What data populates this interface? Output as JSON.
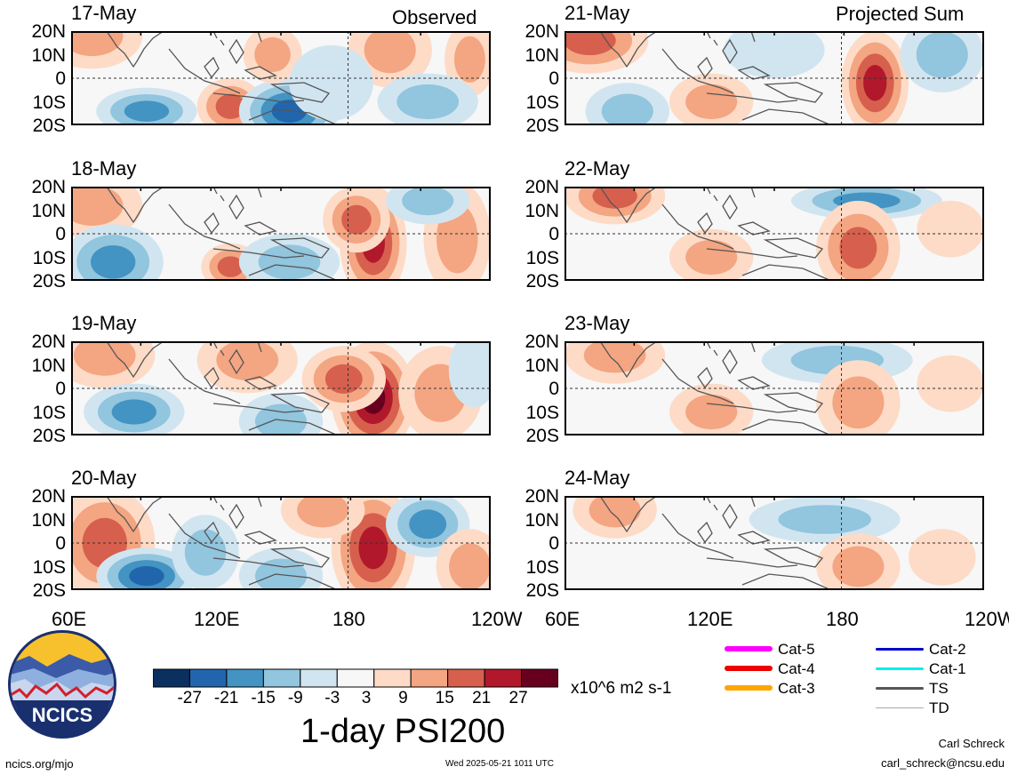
{
  "chart_data": {
    "type": "heatmap",
    "title": "1-day PSI200",
    "units": "x10^6 m2 s-1",
    "left_column_label": "Observed",
    "right_column_label": "Projected Sum",
    "y_ticks": [
      "20N",
      "10N",
      "0",
      "10S",
      "20S"
    ],
    "x_ticks": [
      "60E",
      "120E",
      "180",
      "120W"
    ],
    "colorbar": {
      "ticks": [
        "-27",
        "-21",
        "-15",
        "-9",
        "-3",
        "3",
        "9",
        "15",
        "21",
        "27"
      ],
      "colors": [
        "#0b2f5e",
        "#2166ac",
        "#4393c3",
        "#92c5de",
        "#d1e5f0",
        "#f7f7f7",
        "#fddbc7",
        "#f4a582",
        "#d6604d",
        "#b2182b",
        "#67001f"
      ]
    },
    "panels": [
      {
        "date": "17-May",
        "column": "observed",
        "blobs": [
          [
            0.05,
            0.05,
            0.12,
            0.35,
            9
          ],
          [
            0.18,
            0.85,
            0.12,
            0.25,
            -15
          ],
          [
            0.38,
            0.8,
            0.08,
            0.3,
            15
          ],
          [
            0.52,
            0.85,
            0.12,
            0.35,
            -21
          ],
          [
            0.48,
            0.25,
            0.07,
            0.3,
            9
          ],
          [
            0.76,
            0.2,
            0.1,
            0.4,
            9
          ],
          [
            0.95,
            0.3,
            0.06,
            0.4,
            9
          ],
          [
            0.85,
            0.75,
            0.12,
            0.3,
            -9
          ],
          [
            0.62,
            0.55,
            0.1,
            0.4,
            -3
          ]
        ]
      },
      {
        "date": "18-May",
        "column": "observed",
        "blobs": [
          [
            0.05,
            0.2,
            0.12,
            0.35,
            9
          ],
          [
            0.1,
            0.8,
            0.12,
            0.4,
            -15
          ],
          [
            0.38,
            0.85,
            0.07,
            0.25,
            15
          ],
          [
            0.52,
            0.8,
            0.12,
            0.3,
            -9
          ],
          [
            0.72,
            0.6,
            0.08,
            0.6,
            21
          ],
          [
            0.68,
            0.35,
            0.08,
            0.35,
            15
          ],
          [
            0.92,
            0.55,
            0.08,
            0.6,
            9
          ],
          [
            0.85,
            0.15,
            0.1,
            0.25,
            -9
          ]
        ]
      },
      {
        "date": "19-May",
        "column": "observed",
        "blobs": [
          [
            0.08,
            0.15,
            0.12,
            0.35,
            9
          ],
          [
            0.15,
            0.75,
            0.12,
            0.3,
            -15
          ],
          [
            0.42,
            0.2,
            0.12,
            0.35,
            9
          ],
          [
            0.72,
            0.6,
            0.1,
            0.6,
            27
          ],
          [
            0.65,
            0.4,
            0.1,
            0.35,
            15
          ],
          [
            0.88,
            0.55,
            0.1,
            0.5,
            9
          ],
          [
            0.5,
            0.85,
            0.1,
            0.3,
            -9
          ],
          [
            0.96,
            0.3,
            0.06,
            0.4,
            -3
          ]
        ]
      },
      {
        "date": "20-May",
        "column": "observed",
        "blobs": [
          [
            0.08,
            0.5,
            0.12,
            0.6,
            15
          ],
          [
            0.18,
            0.85,
            0.12,
            0.3,
            -21
          ],
          [
            0.32,
            0.6,
            0.08,
            0.4,
            -9
          ],
          [
            0.72,
            0.55,
            0.1,
            0.65,
            21
          ],
          [
            0.6,
            0.15,
            0.1,
            0.3,
            9
          ],
          [
            0.85,
            0.3,
            0.1,
            0.35,
            -15
          ],
          [
            0.95,
            0.75,
            0.08,
            0.4,
            9
          ],
          [
            0.5,
            0.85,
            0.1,
            0.3,
            -9
          ]
        ]
      },
      {
        "date": "21-May",
        "column": "projected",
        "blobs": [
          [
            0.06,
            0.1,
            0.14,
            0.35,
            15
          ],
          [
            0.15,
            0.85,
            0.1,
            0.3,
            -9
          ],
          [
            0.5,
            0.2,
            0.12,
            0.3,
            -3
          ],
          [
            0.74,
            0.55,
            0.08,
            0.55,
            21
          ],
          [
            0.9,
            0.25,
            0.1,
            0.4,
            -9
          ],
          [
            0.35,
            0.75,
            0.1,
            0.3,
            9
          ]
        ]
      },
      {
        "date": "22-May",
        "column": "projected",
        "blobs": [
          [
            0.12,
            0.1,
            0.12,
            0.3,
            15
          ],
          [
            0.72,
            0.15,
            0.18,
            0.2,
            -15
          ],
          [
            0.7,
            0.65,
            0.1,
            0.5,
            15
          ],
          [
            0.35,
            0.75,
            0.1,
            0.3,
            9
          ],
          [
            0.92,
            0.45,
            0.08,
            0.3,
            3
          ]
        ]
      },
      {
        "date": "23-May",
        "column": "projected",
        "blobs": [
          [
            0.12,
            0.15,
            0.12,
            0.3,
            9
          ],
          [
            0.65,
            0.2,
            0.18,
            0.25,
            -9
          ],
          [
            0.7,
            0.65,
            0.1,
            0.45,
            9
          ],
          [
            0.35,
            0.75,
            0.1,
            0.3,
            9
          ],
          [
            0.92,
            0.45,
            0.08,
            0.3,
            3
          ]
        ]
      },
      {
        "date": "24-May",
        "column": "projected",
        "blobs": [
          [
            0.12,
            0.15,
            0.1,
            0.3,
            9
          ],
          [
            0.62,
            0.25,
            0.18,
            0.25,
            -9
          ],
          [
            0.7,
            0.75,
            0.1,
            0.35,
            9
          ],
          [
            0.9,
            0.65,
            0.08,
            0.3,
            3
          ]
        ]
      }
    ]
  },
  "legend": {
    "items": [
      {
        "label": "Cat-5",
        "color": "#ff00ff",
        "weight": "thick"
      },
      {
        "label": "Cat-4",
        "color": "#ee0000",
        "weight": "thick"
      },
      {
        "label": "Cat-3",
        "color": "#ffa500",
        "weight": "thick"
      },
      {
        "label": "Cat-2",
        "color": "#0000cc",
        "weight": "medium"
      },
      {
        "label": "Cat-1",
        "color": "#00eeee",
        "weight": "medium"
      },
      {
        "label": "TS",
        "color": "#555555",
        "weight": "medium"
      },
      {
        "label": "TD",
        "color": "#aaaaaa",
        "weight": "thin"
      }
    ]
  },
  "logo": {
    "text": "NCICS"
  },
  "footer": {
    "site": "ncics.org/mjo",
    "timestamp": "Wed 2025-05-21 1011 UTC",
    "author": "Carl Schreck",
    "email": "carl_schreck@ncsu.edu"
  }
}
